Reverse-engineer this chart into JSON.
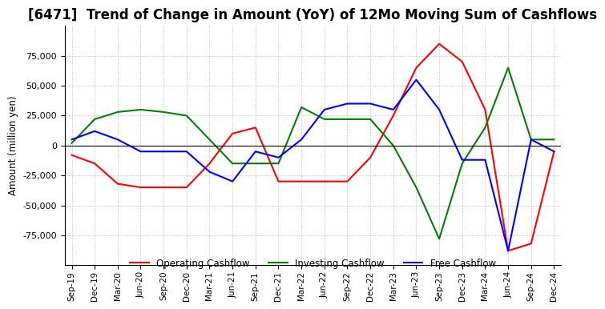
{
  "title": "[6471]  Trend of Change in Amount (YoY) of 12Mo Moving Sum of Cashflows",
  "ylabel": "Amount (million yen)",
  "x_labels": [
    "Sep-19",
    "Dec-19",
    "Mar-20",
    "Jun-20",
    "Sep-20",
    "Dec-20",
    "Mar-21",
    "Jun-21",
    "Sep-21",
    "Dec-21",
    "Mar-22",
    "Jun-22",
    "Sep-22",
    "Dec-22",
    "Mar-23",
    "Jun-23",
    "Sep-23",
    "Dec-23",
    "Mar-24",
    "Jun-24",
    "Sep-24",
    "Dec-24"
  ],
  "operating": [
    -8000,
    -15000,
    -32000,
    -35000,
    -35000,
    -35000,
    -15000,
    10000,
    15000,
    -30000,
    -30000,
    -30000,
    -30000,
    -10000,
    25000,
    65000,
    85000,
    70000,
    30000,
    -88000,
    -82000,
    -5000
  ],
  "investing": [
    2000,
    22000,
    28000,
    30000,
    28000,
    25000,
    5000,
    -15000,
    -15000,
    -15000,
    32000,
    22000,
    22000,
    22000,
    0,
    -35000,
    -78000,
    -15000,
    15000,
    65000,
    5000,
    5000
  ],
  "free": [
    5000,
    12000,
    5000,
    -5000,
    -5000,
    -5000,
    -22000,
    -30000,
    -5000,
    -10000,
    5000,
    30000,
    35000,
    35000,
    30000,
    55000,
    30000,
    -12000,
    -12000,
    -88000,
    5000,
    -5000
  ],
  "colors": {
    "operating": "#ff0000",
    "investing": "#008000",
    "free": "#0000ff"
  },
  "ylim": [
    -100000,
    100000
  ],
  "yticks": [
    -75000,
    -50000,
    -25000,
    0,
    25000,
    50000,
    75000
  ],
  "background": "#ffffff",
  "grid_color": "#b0b0b0",
  "title_fontsize": 12,
  "legend_labels": [
    "Operating Cashflow",
    "Investing Cashflow",
    "Free Cashflow"
  ]
}
